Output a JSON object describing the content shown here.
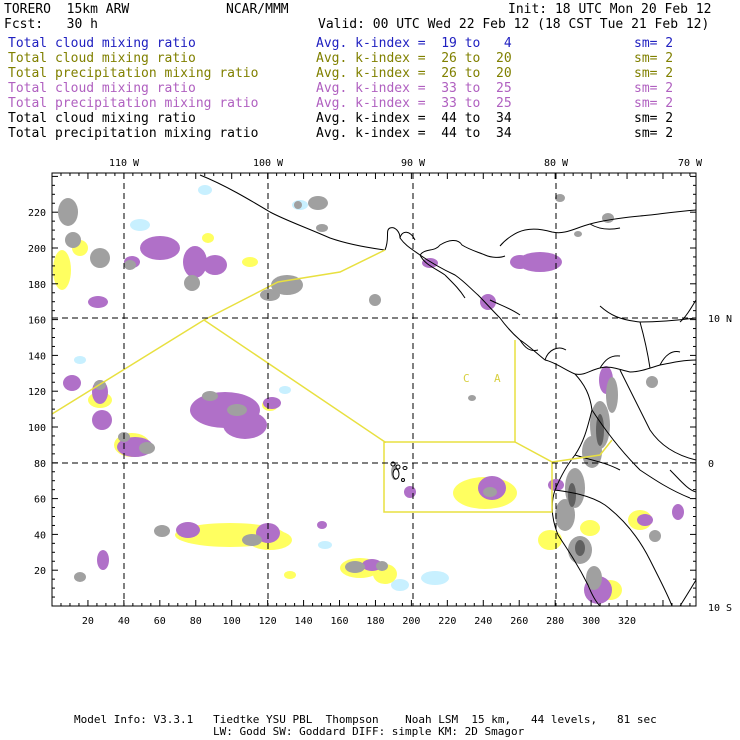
{
  "header": {
    "model": "TORERO  15km ARW",
    "center": "NCAR/MMM",
    "init": "Init: 18 UTC Mon 20 Feb 12",
    "fcst": "Fcst:   30 h",
    "valid": "Valid: 00 UTC Wed 22 Feb 12 (18 CST Tue 21 Feb 12)"
  },
  "legend": [
    {
      "name": "Total cloud mixing ratio",
      "index": "Avg. k-index =  19 to   4",
      "sm": "sm= 2",
      "color": "#2020c0"
    },
    {
      "name": "Total cloud mixing ratio",
      "index": "Avg. k-index =  26 to  20",
      "sm": "sm= 2",
      "color": "#808000"
    },
    {
      "name": "Total precipitation mixing ratio",
      "index": "Avg. k-index =  26 to  20",
      "sm": "sm= 2",
      "color": "#808000"
    },
    {
      "name": "Total cloud mixing ratio",
      "index": "Avg. k-index =  33 to  25",
      "sm": "sm= 2",
      "color": "#b060c0"
    },
    {
      "name": "Total precipitation mixing ratio",
      "index": "Avg. k-index =  33 to  25",
      "sm": "sm= 2",
      "color": "#b060c0"
    },
    {
      "name": "Total cloud mixing ratio",
      "index": "Avg. k-index =  44 to  34",
      "sm": "sm= 2",
      "color": "#000000"
    },
    {
      "name": "Total precipitation mixing ratio",
      "index": "Avg. k-index =  44 to  34",
      "sm": "sm= 2",
      "color": "#000000"
    }
  ],
  "map": {
    "top_lon_labels": [
      "110 W",
      "100 W",
      "90 W",
      "80 W",
      "70 W"
    ],
    "right_lat_labels": [
      "10 N",
      "0",
      "10 S"
    ],
    "left_grid_labels": [
      "220",
      "200",
      "180",
      "160",
      "140",
      "120",
      "100",
      "80",
      "60",
      "40",
      "20"
    ],
    "bottom_grid_labels": [
      "20",
      "40",
      "60",
      "80",
      "100",
      "120",
      "140",
      "160",
      "180",
      "200",
      "220",
      "240",
      "260",
      "280",
      "300",
      "320"
    ],
    "region_labels": [
      "C",
      "A"
    ],
    "colors": {
      "cloud_gray": "#a0a0a0",
      "purple": "#b070c8",
      "yellow": "#ffff60",
      "cyan": "#c8f0ff",
      "domain": "#e8e040"
    }
  },
  "footer": {
    "line1": "Model Info: V3.3.1   Tiedtke YSU PBL  Thompson    Noah LSM  15 km,   44 levels,   81 sec",
    "line2": "LW: Godd SW: Goddard DIFF: simple KM: 2D Smagor"
  }
}
